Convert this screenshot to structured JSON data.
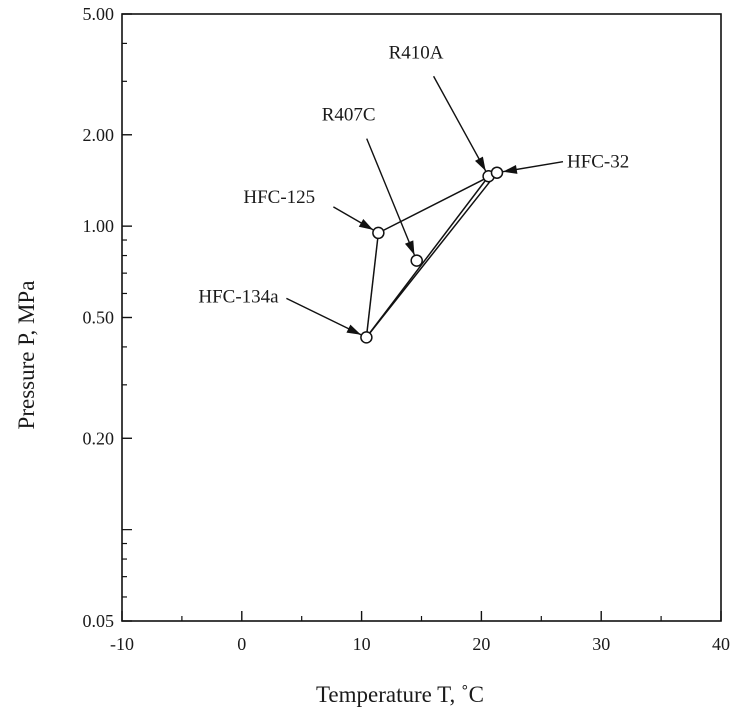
{
  "chart_data": {
    "type": "scatter",
    "title": "",
    "xlabel": "Temperature   T, ˚C",
    "ylabel": "Pressure   P, MPa",
    "xlim": [
      -10,
      40
    ],
    "ylim": [
      0.05,
      5.0
    ],
    "y_scale": "log",
    "x_ticks": [
      -10,
      0,
      10,
      20,
      30,
      40
    ],
    "x_tick_labels": [
      "-10",
      "0",
      "10",
      "20",
      "30",
      "40"
    ],
    "y_ticks": [
      0.05,
      0.2,
      0.5,
      1.0,
      2.0,
      5.0
    ],
    "y_tick_labels": [
      "0.05",
      "0.20",
      "0.50",
      "1.00",
      "2.00",
      "5.00"
    ],
    "y_minor_ticks": [
      0.1
    ],
    "grid": false,
    "points": [
      {
        "name": "HFC-134a",
        "x": 10.4,
        "y": 0.43
      },
      {
        "name": "HFC-125",
        "x": 11.4,
        "y": 0.95
      },
      {
        "name": "R407C",
        "x": 14.6,
        "y": 0.77
      },
      {
        "name": "R410A",
        "x": 20.6,
        "y": 1.46
      },
      {
        "name": "HFC-32",
        "x": 21.3,
        "y": 1.5
      }
    ],
    "lines": [
      {
        "from": "HFC-134a",
        "to": "HFC-125"
      },
      {
        "from": "HFC-125",
        "to": "HFC-32"
      },
      {
        "from": "HFC-134a",
        "to": "HFC-32"
      },
      {
        "from": "HFC-134a",
        "to": "R410A"
      }
    ],
    "annotations": [
      {
        "text": "R410A",
        "points_to": "R410A"
      },
      {
        "text": "R407C",
        "points_to": "R407C"
      },
      {
        "text": "HFC-125",
        "points_to": "HFC-125"
      },
      {
        "text": "HFC-32",
        "points_to": "HFC-32"
      },
      {
        "text": "HFC-134a",
        "points_to": "HFC-134a"
      }
    ]
  }
}
